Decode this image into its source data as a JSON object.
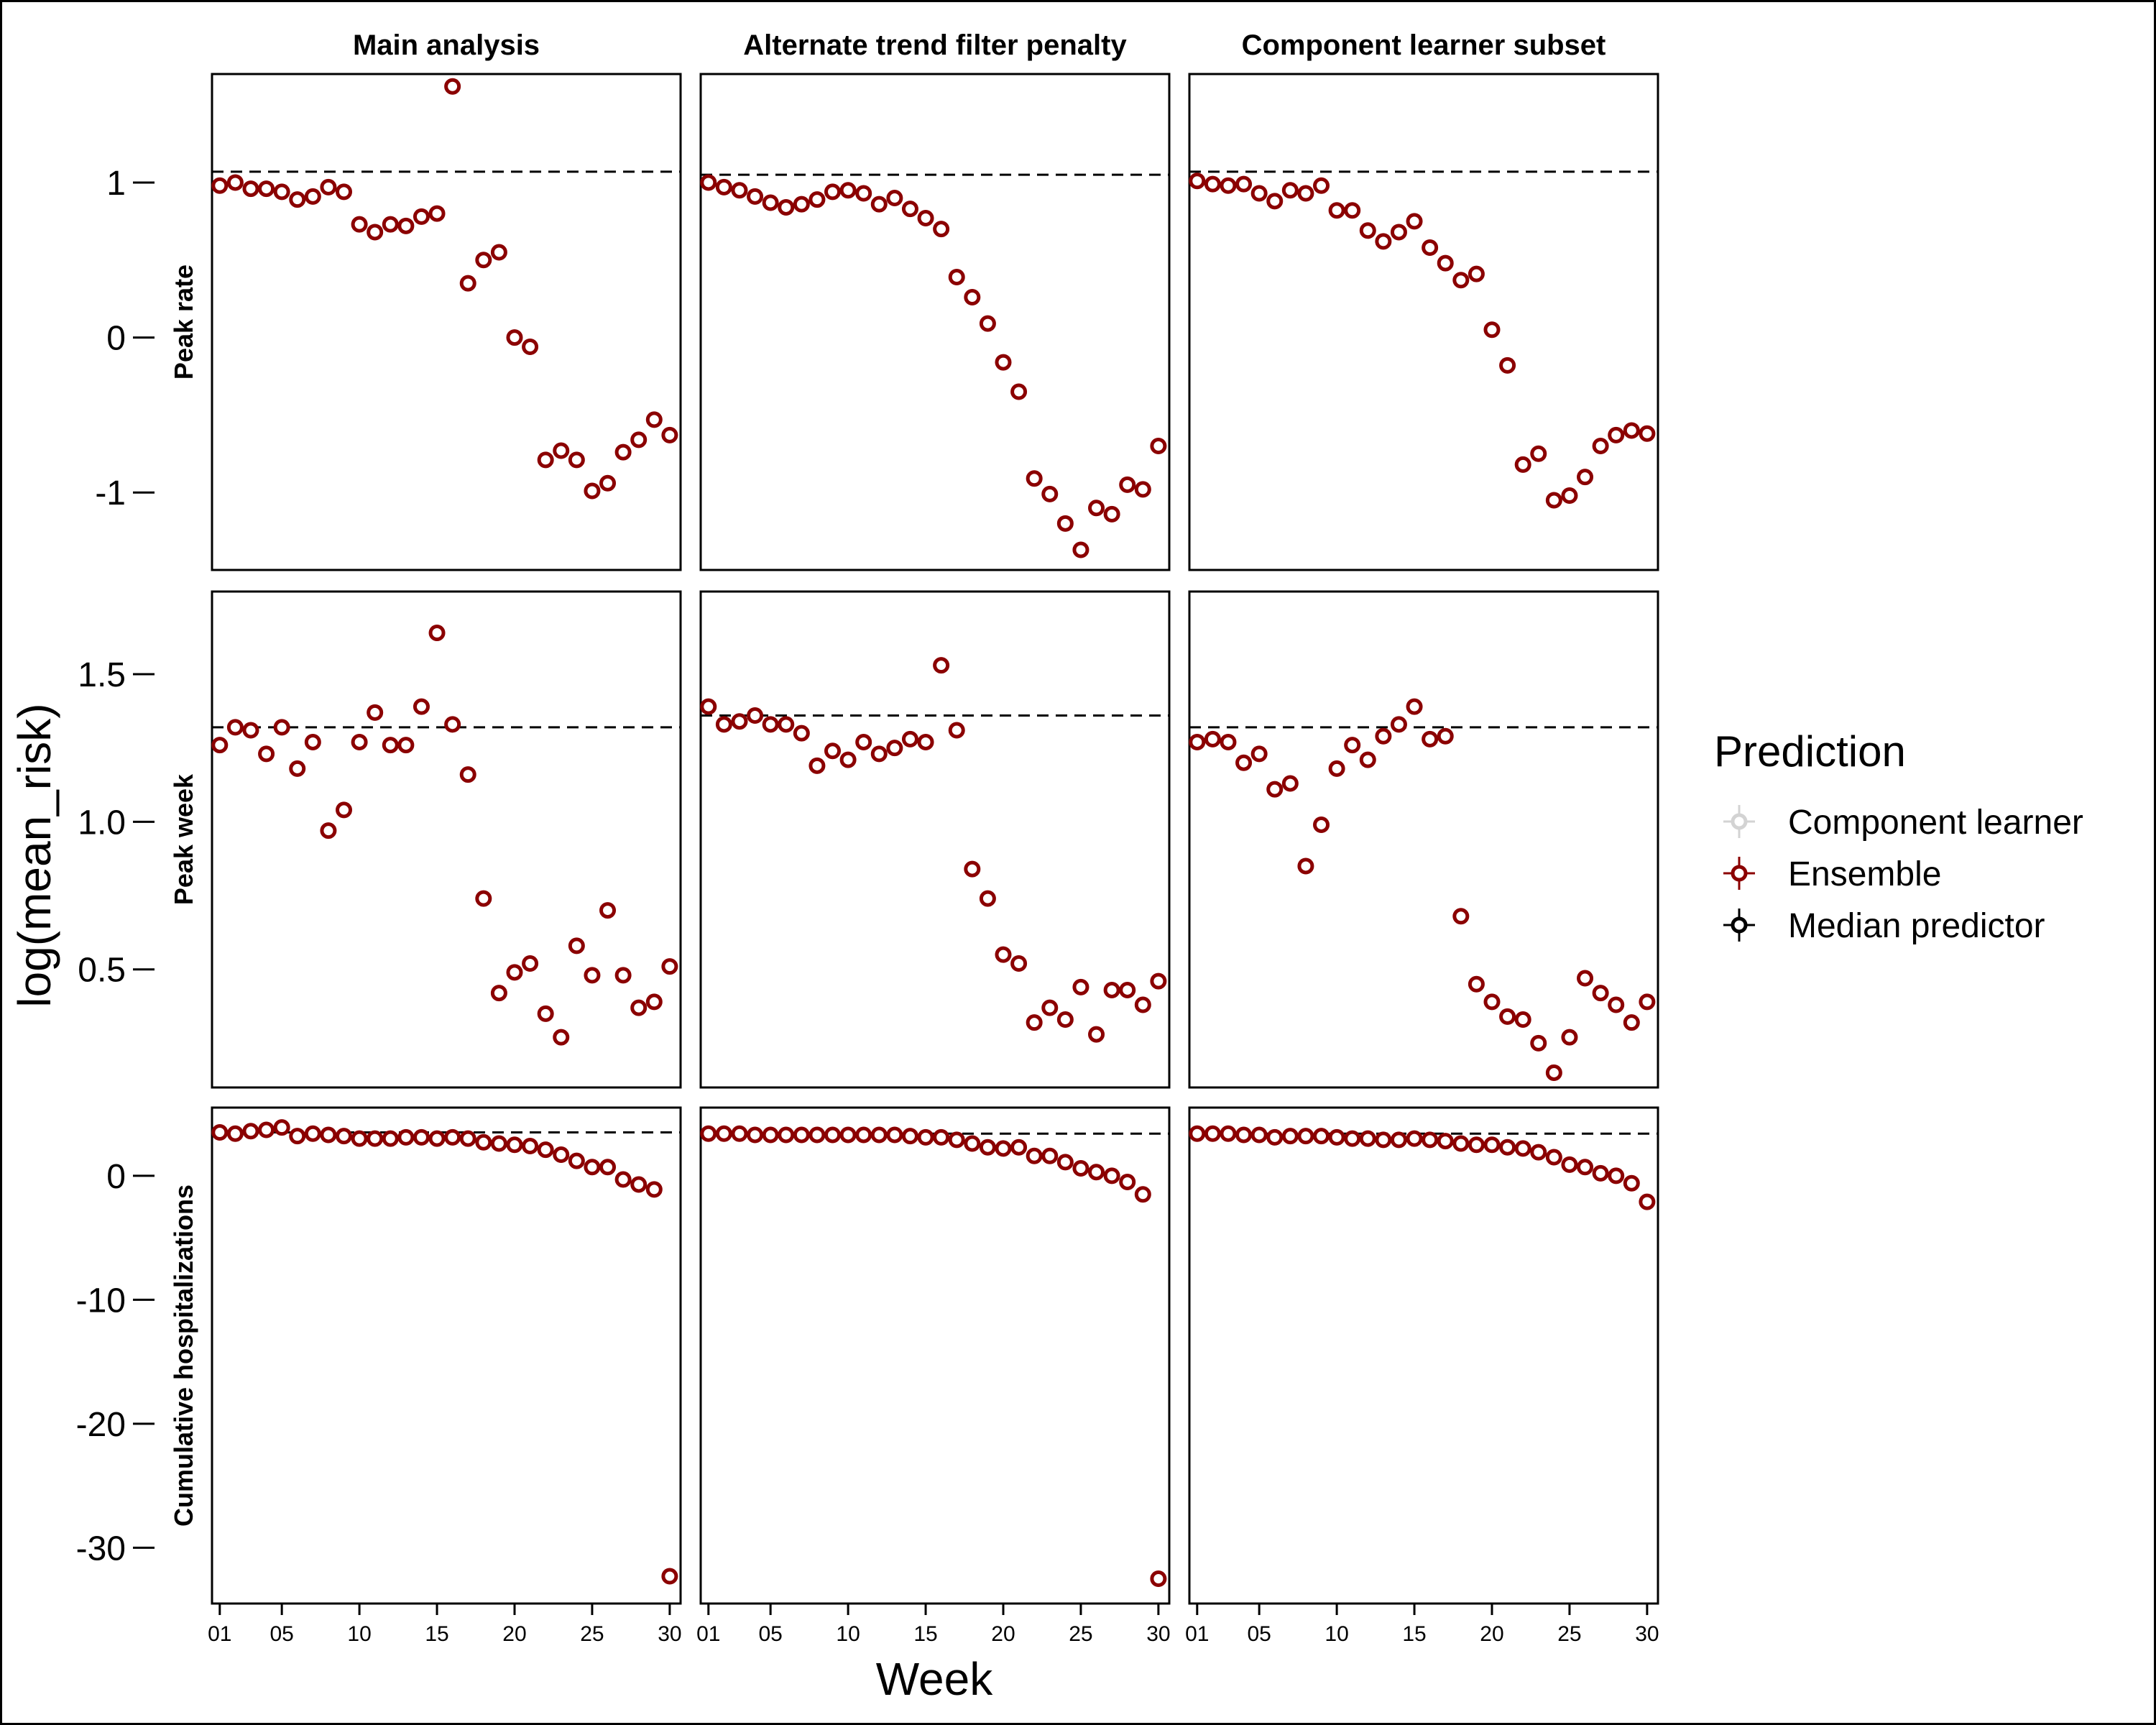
{
  "chart_data": {
    "type": "scatter",
    "layout": "facet-grid 3 rows x 3 columns",
    "columns": [
      "Main analysis",
      "Alternate trend filter penalty",
      "Component learner subset"
    ],
    "rows": [
      {
        "label": "Peak rate",
        "ylim": [
          -1.5,
          1.7
        ],
        "yticks": [
          {
            "v": 1,
            "t": "1"
          },
          {
            "v": 0,
            "t": "0"
          },
          {
            "v": -1,
            "t": "-1"
          }
        ]
      },
      {
        "label": "Peak week",
        "ylim": [
          0.1,
          1.78
        ],
        "yticks": [
          {
            "v": 1.5,
            "t": "1.5"
          },
          {
            "v": 1.0,
            "t": "1.0"
          },
          {
            "v": 0.5,
            "t": "0.5"
          }
        ]
      },
      {
        "label": "Cumulative hospitalizations",
        "ylim": [
          -34.5,
          5.5
        ],
        "yticks": [
          {
            "v": 0,
            "t": "0"
          },
          {
            "v": -10,
            "t": "-10"
          },
          {
            "v": -20,
            "t": "-20"
          },
          {
            "v": -30,
            "t": "-30"
          }
        ]
      }
    ],
    "x": [
      1,
      2,
      3,
      4,
      5,
      6,
      7,
      8,
      9,
      10,
      11,
      12,
      13,
      14,
      15,
      16,
      17,
      18,
      19,
      20,
      21,
      22,
      23,
      24,
      25,
      26,
      27,
      28,
      29,
      30
    ],
    "xlim": [
      0.5,
      30.7
    ],
    "xticks": [
      {
        "v": 1,
        "t": "01"
      },
      {
        "v": 5,
        "t": "05"
      },
      {
        "v": 10,
        "t": "10"
      },
      {
        "v": 15,
        "t": "15"
      },
      {
        "v": 20,
        "t": "20"
      },
      {
        "v": 25,
        "t": "25"
      },
      {
        "v": 30,
        "t": "30"
      }
    ],
    "xlabel": "Week",
    "ylabel": "log(mean_risk)",
    "legend": {
      "title": "Prediction",
      "placement": "right",
      "entries": [
        {
          "label": "Component learner",
          "color": "#d3d3d3"
        },
        {
          "label": "Ensemble",
          "color": "#8b0000"
        },
        {
          "label": "Median predictor",
          "color": "#000000"
        }
      ]
    },
    "panels": [
      [
        {
          "ref": 1.07,
          "ensemble": [
            0.98,
            1.0,
            0.96,
            0.96,
            0.94,
            0.89,
            0.91,
            0.97,
            0.94,
            0.73,
            0.68,
            0.73,
            0.72,
            0.78,
            0.8,
            1.62,
            0.35,
            0.5,
            0.55,
            0.0,
            -0.06,
            -0.79,
            -0.73,
            -0.79,
            -0.99,
            -0.94,
            -0.74,
            -0.66,
            -0.53,
            -0.63
          ]
        },
        {
          "ref": 1.05,
          "ensemble": [
            1.0,
            0.97,
            0.95,
            0.91,
            0.87,
            0.84,
            0.86,
            0.89,
            0.94,
            0.95,
            0.93,
            0.86,
            0.9,
            0.83,
            0.77,
            0.7,
            0.39,
            0.26,
            0.09,
            -0.16,
            -0.35,
            -0.91,
            -1.01,
            -1.2,
            -1.37,
            -1.1,
            -1.14,
            -0.95,
            -0.98,
            -0.7
          ]
        },
        {
          "ref": 1.07,
          "ensemble": [
            1.01,
            0.99,
            0.98,
            0.99,
            0.93,
            0.88,
            0.95,
            0.93,
            0.98,
            0.82,
            0.82,
            0.69,
            0.62,
            0.68,
            0.75,
            0.58,
            0.48,
            0.37,
            0.41,
            0.05,
            -0.18,
            -0.82,
            -0.75,
            -1.05,
            -1.02,
            -0.9,
            -0.7,
            -0.63,
            -0.6,
            -0.62
          ]
        }
      ],
      [
        {
          "ref": 1.32,
          "ensemble": [
            1.26,
            1.32,
            1.31,
            1.23,
            1.32,
            1.18,
            1.27,
            0.97,
            1.04,
            1.27,
            1.37,
            1.26,
            1.26,
            1.39,
            1.64,
            1.33,
            1.16,
            0.74,
            0.42,
            0.49,
            0.52,
            0.35,
            0.27,
            0.58,
            0.48,
            0.7,
            0.48,
            0.37,
            0.39,
            0.51
          ]
        },
        {
          "ref": 1.36,
          "ensemble": [
            1.39,
            1.33,
            1.34,
            1.36,
            1.33,
            1.33,
            1.3,
            1.19,
            1.24,
            1.21,
            1.27,
            1.23,
            1.25,
            1.28,
            1.27,
            1.53,
            1.31,
            0.84,
            0.74,
            0.55,
            0.52,
            0.32,
            0.37,
            0.33,
            0.44,
            0.28,
            0.43,
            0.43,
            0.38,
            0.46
          ]
        },
        {
          "ref": 1.32,
          "ensemble": [
            1.27,
            1.28,
            1.27,
            1.2,
            1.23,
            1.11,
            1.13,
            0.85,
            0.99,
            1.18,
            1.26,
            1.21,
            1.29,
            1.33,
            1.39,
            1.28,
            1.29,
            0.68,
            0.45,
            0.39,
            0.34,
            0.33,
            0.25,
            0.15,
            0.27,
            0.47,
            0.42,
            0.38,
            0.32,
            0.39
          ]
        }
      ],
      [
        {
          "ref": 3.5,
          "ensemble": [
            3.5,
            3.4,
            3.6,
            3.7,
            3.9,
            3.2,
            3.4,
            3.3,
            3.2,
            3.0,
            3.0,
            3.0,
            3.1,
            3.1,
            3.0,
            3.1,
            3.0,
            2.7,
            2.6,
            2.5,
            2.4,
            2.1,
            1.7,
            1.2,
            0.7,
            0.7,
            -0.3,
            -0.7,
            -1.1,
            -32.3
          ]
        },
        {
          "ref": 3.4,
          "ensemble": [
            3.4,
            3.4,
            3.4,
            3.3,
            3.3,
            3.3,
            3.3,
            3.3,
            3.3,
            3.3,
            3.3,
            3.3,
            3.3,
            3.2,
            3.1,
            3.1,
            2.9,
            2.6,
            2.3,
            2.2,
            2.3,
            1.6,
            1.6,
            1.1,
            0.6,
            0.3,
            0.0,
            -0.5,
            -1.5,
            -32.5
          ]
        },
        {
          "ref": 3.4,
          "ensemble": [
            3.4,
            3.4,
            3.4,
            3.3,
            3.3,
            3.1,
            3.2,
            3.2,
            3.2,
            3.1,
            3.0,
            3.0,
            2.9,
            2.9,
            3.0,
            2.9,
            2.8,
            2.6,
            2.5,
            2.5,
            2.3,
            2.2,
            1.9,
            1.5,
            0.9,
            0.7,
            0.2,
            0.0,
            -0.6,
            -2.1
          ]
        }
      ]
    ]
  }
}
